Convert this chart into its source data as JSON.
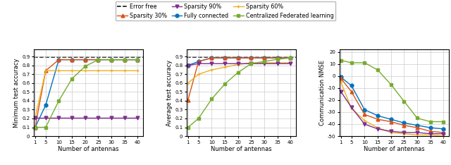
{
  "x": [
    1,
    5,
    10,
    15,
    20,
    25,
    30,
    35,
    40
  ],
  "error_free": 0.895,
  "subplot1": {
    "ylabel": "Minimum test accuracy",
    "xlabel": "Number of antennas",
    "ylim": [
      0,
      0.98
    ],
    "yticks": [
      0,
      0.1,
      0.2,
      0.3,
      0.4,
      0.5,
      0.6,
      0.7,
      0.8,
      0.9
    ],
    "fully_connected": [
      0.1,
      0.35,
      0.865,
      0.865,
      0.865,
      0.865,
      0.865,
      0.865,
      0.865
    ],
    "sparsity30": [
      0.1,
      0.74,
      0.865,
      0.865,
      0.865,
      0.865,
      0.865,
      0.865,
      0.865
    ],
    "sparsity60": [
      0.21,
      0.74,
      0.74,
      0.74,
      0.74,
      0.74,
      0.74,
      0.74,
      0.74
    ],
    "sparsity90": [
      0.21,
      0.21,
      0.21,
      0.21,
      0.21,
      0.21,
      0.21,
      0.21,
      0.21
    ],
    "centralized": [
      0.1,
      0.1,
      0.4,
      0.65,
      0.79,
      0.865,
      0.865,
      0.865,
      0.865
    ]
  },
  "subplot2": {
    "ylabel": "Average test accuracy",
    "xlabel": "Number of antennas",
    "ylim": [
      0,
      0.98
    ],
    "yticks": [
      0,
      0.1,
      0.2,
      0.3,
      0.4,
      0.5,
      0.6,
      0.7,
      0.8,
      0.9
    ],
    "fully_connected": [
      0.8,
      0.845,
      0.885,
      0.885,
      0.885,
      0.885,
      0.885,
      0.885,
      0.885
    ],
    "sparsity30": [
      0.41,
      0.845,
      0.885,
      0.885,
      0.885,
      0.885,
      0.885,
      0.885,
      0.885
    ],
    "sparsity60": [
      0.6,
      0.7,
      0.75,
      0.78,
      0.81,
      0.83,
      0.83,
      0.83,
      0.83
    ],
    "sparsity90": [
      0.8,
      0.82,
      0.82,
      0.82,
      0.82,
      0.82,
      0.82,
      0.82,
      0.82
    ],
    "centralized": [
      0.1,
      0.2,
      0.42,
      0.59,
      0.72,
      0.82,
      0.845,
      0.87,
      0.885
    ]
  },
  "subplot3": {
    "ylabel": "Communication NMSE",
    "xlabel": "Number of antennas",
    "ylim": [
      -50,
      22
    ],
    "yticks": [
      -50,
      -40,
      -30,
      -20,
      -10,
      0,
      10,
      20
    ],
    "fully_connected": [
      -1,
      -8,
      -28,
      -33,
      -36,
      -39,
      -41,
      -43,
      -44
    ],
    "sparsity30": [
      -2,
      -13,
      -32,
      -36,
      -38,
      -41,
      -43,
      -46,
      -47
    ],
    "sparsity60": [
      -5,
      -27,
      -37,
      -43,
      -47,
      -48,
      -49,
      -49,
      -50
    ],
    "sparsity90": [
      -13,
      -26,
      -40,
      -44,
      -46,
      -47,
      -47,
      -48,
      -48
    ],
    "centralized": [
      13,
      11,
      11,
      5,
      -7,
      -21,
      -35,
      -38,
      -38
    ]
  },
  "colors": {
    "error_free": "#000000",
    "fully_connected": "#0072bd",
    "sparsity30": "#d95319",
    "sparsity60": "#edb120",
    "sparsity90": "#7e2f8e",
    "centralized": "#77ac30"
  },
  "markers": {
    "fully_connected": "o",
    "sparsity30": "^",
    "sparsity60": "+",
    "sparsity90": "v",
    "centralized": "s"
  },
  "legend_row1": [
    "error_free",
    "sparsity30",
    "sparsity90"
  ],
  "legend_row2": [
    "fully_connected",
    "sparsity60",
    "centralized"
  ],
  "legend_labels": {
    "error_free": "Error free",
    "fully_connected": "Fully connected",
    "sparsity30": "Sparsity 30%",
    "sparsity60": "Sparsity 60%",
    "sparsity90": "Sparsity 90%",
    "centralized": "Centralized Federated learning"
  }
}
